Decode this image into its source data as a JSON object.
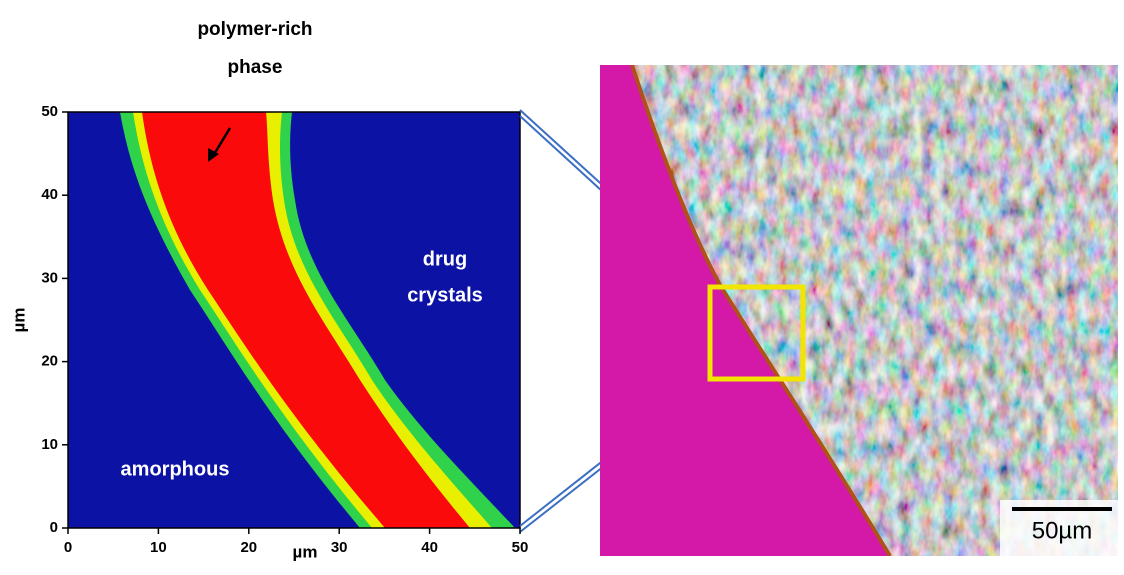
{
  "chart_data": {
    "type": "phase-map",
    "xlabel": "µm",
    "ylabel": "µm",
    "xlim": [
      0,
      50
    ],
    "ylim": [
      0,
      50
    ],
    "xticks": [
      0,
      10,
      20,
      30,
      40,
      50
    ],
    "yticks": [
      0,
      10,
      20,
      30,
      40,
      50
    ],
    "annotations": {
      "polymer_rich": [
        "polymer-rich",
        "phase"
      ],
      "drug_crystals": [
        "drug",
        "crystals"
      ],
      "amorphous": "amorphous"
    }
  },
  "micrograph": {
    "scale_bar": "50µm"
  }
}
